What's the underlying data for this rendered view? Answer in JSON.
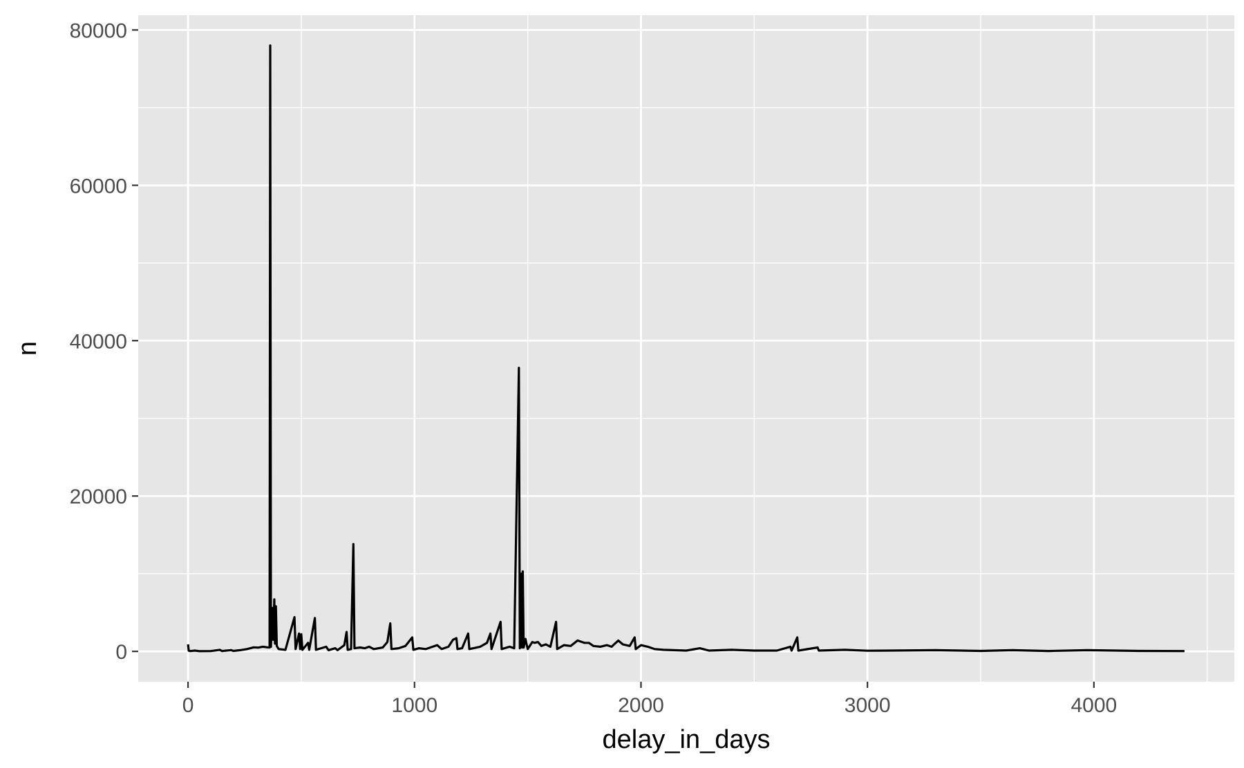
{
  "chart_data": {
    "type": "line",
    "title": "",
    "xlabel": "delay_in_days",
    "ylabel": "n",
    "xlim": [
      -220,
      4620
    ],
    "ylim": [
      -3900,
      81900
    ],
    "x_ticks": [
      0,
      1000,
      2000,
      3000,
      4000
    ],
    "x_tick_labels": [
      "0",
      "1000",
      "2000",
      "3000",
      "4000"
    ],
    "y_ticks": [
      0,
      20000,
      40000,
      60000,
      80000
    ],
    "y_tick_labels": [
      "0",
      "20000",
      "40000",
      "60000",
      "80000"
    ],
    "grid": true,
    "legend": "none",
    "colors": {
      "panel": "#e6e6e6",
      "grid": "#ffffff",
      "line": "#000000"
    },
    "series": [
      {
        "values": [
          [
            0,
            900
          ],
          [
            3,
            80
          ],
          [
            10,
            40
          ],
          [
            30,
            100
          ],
          [
            50,
            30
          ],
          [
            100,
            40
          ],
          [
            140,
            200
          ],
          [
            150,
            50
          ],
          [
            190,
            160
          ],
          [
            200,
            60
          ],
          [
            230,
            150
          ],
          [
            260,
            300
          ],
          [
            290,
            520
          ],
          [
            310,
            480
          ],
          [
            330,
            600
          ],
          [
            350,
            520
          ],
          [
            360,
            500
          ],
          [
            363,
            78000
          ],
          [
            366,
            600
          ],
          [
            372,
            5600
          ],
          [
            376,
            1500
          ],
          [
            381,
            6700
          ],
          [
            384,
            1000
          ],
          [
            388,
            5800
          ],
          [
            392,
            700
          ],
          [
            400,
            300
          ],
          [
            430,
            200
          ],
          [
            470,
            4400
          ],
          [
            475,
            300
          ],
          [
            490,
            2300
          ],
          [
            495,
            300
          ],
          [
            500,
            2200
          ],
          [
            505,
            200
          ],
          [
            530,
            1100
          ],
          [
            535,
            200
          ],
          [
            560,
            4300
          ],
          [
            565,
            200
          ],
          [
            610,
            600
          ],
          [
            620,
            150
          ],
          [
            650,
            400
          ],
          [
            660,
            150
          ],
          [
            690,
            800
          ],
          [
            700,
            2500
          ],
          [
            705,
            200
          ],
          [
            720,
            300
          ],
          [
            730,
            13800
          ],
          [
            735,
            400
          ],
          [
            760,
            500
          ],
          [
            780,
            400
          ],
          [
            800,
            600
          ],
          [
            820,
            300
          ],
          [
            860,
            500
          ],
          [
            880,
            1200
          ],
          [
            893,
            3600
          ],
          [
            898,
            300
          ],
          [
            930,
            400
          ],
          [
            960,
            700
          ],
          [
            990,
            1800
          ],
          [
            995,
            200
          ],
          [
            1020,
            400
          ],
          [
            1050,
            300
          ],
          [
            1100,
            800
          ],
          [
            1120,
            300
          ],
          [
            1150,
            600
          ],
          [
            1170,
            1500
          ],
          [
            1185,
            1700
          ],
          [
            1190,
            300
          ],
          [
            1210,
            400
          ],
          [
            1237,
            2300
          ],
          [
            1242,
            300
          ],
          [
            1290,
            600
          ],
          [
            1320,
            1100
          ],
          [
            1335,
            2300
          ],
          [
            1340,
            300
          ],
          [
            1380,
            3800
          ],
          [
            1385,
            300
          ],
          [
            1420,
            600
          ],
          [
            1440,
            400
          ],
          [
            1461,
            36500
          ],
          [
            1465,
            400
          ],
          [
            1471,
            10000
          ],
          [
            1475,
            500
          ],
          [
            1478,
            10300
          ],
          [
            1482,
            500
          ],
          [
            1490,
            1600
          ],
          [
            1500,
            300
          ],
          [
            1520,
            1200
          ],
          [
            1530,
            1100
          ],
          [
            1545,
            1200
          ],
          [
            1560,
            700
          ],
          [
            1580,
            900
          ],
          [
            1600,
            600
          ],
          [
            1625,
            3800
          ],
          [
            1630,
            300
          ],
          [
            1660,
            800
          ],
          [
            1690,
            700
          ],
          [
            1720,
            1400
          ],
          [
            1750,
            1100
          ],
          [
            1770,
            1100
          ],
          [
            1790,
            700
          ],
          [
            1820,
            600
          ],
          [
            1850,
            800
          ],
          [
            1870,
            600
          ],
          [
            1900,
            1400
          ],
          [
            1920,
            900
          ],
          [
            1950,
            700
          ],
          [
            1972,
            1800
          ],
          [
            1977,
            300
          ],
          [
            2000,
            800
          ],
          [
            2030,
            600
          ],
          [
            2060,
            300
          ],
          [
            2100,
            200
          ],
          [
            2200,
            100
          ],
          [
            2260,
            400
          ],
          [
            2300,
            100
          ],
          [
            2400,
            200
          ],
          [
            2500,
            100
          ],
          [
            2600,
            100
          ],
          [
            2660,
            600
          ],
          [
            2665,
            100
          ],
          [
            2690,
            1800
          ],
          [
            2695,
            100
          ],
          [
            2780,
            500
          ],
          [
            2785,
            100
          ],
          [
            2900,
            200
          ],
          [
            3000,
            80
          ],
          [
            3100,
            100
          ],
          [
            3300,
            150
          ],
          [
            3500,
            60
          ],
          [
            3640,
            150
          ],
          [
            3800,
            50
          ],
          [
            3970,
            150
          ],
          [
            4200,
            60
          ],
          [
            4400,
            40
          ]
        ]
      }
    ]
  }
}
